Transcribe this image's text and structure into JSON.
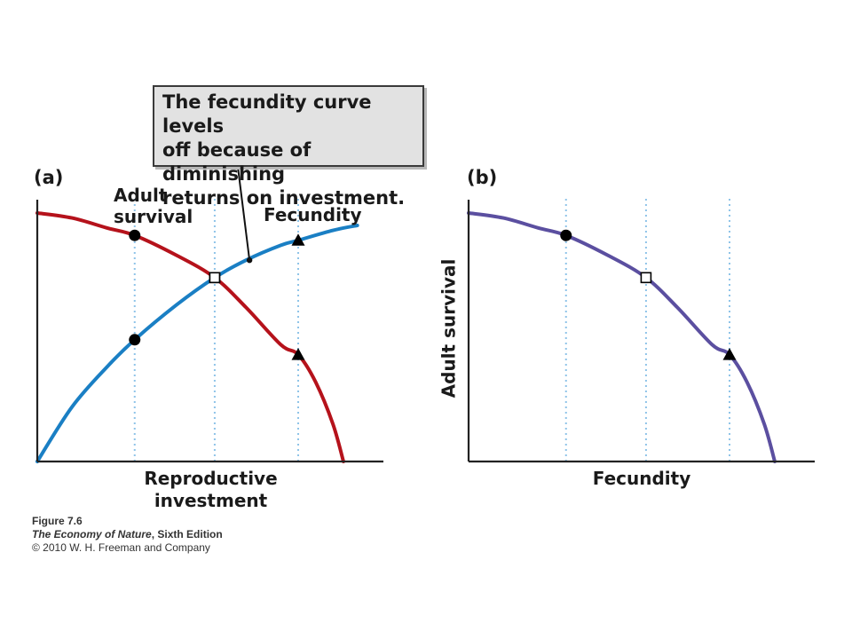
{
  "callout": {
    "lines": [
      "The fecundity curve levels",
      "off because of diminishing",
      "returns on investment."
    ]
  },
  "credit": {
    "figure": "Figure 7.6",
    "book_title": "The Economy of Nature",
    "book_edition": ", Sixth Edition",
    "copyright": "© 2010 W. H. Freeman and Company"
  },
  "colors": {
    "adult_survival": "#b5121b",
    "fecundity": "#1a7fc4",
    "tradeoff": "#5b4fa0",
    "guide": "#8fc4e8",
    "axis": "#222222"
  },
  "chart_data": [
    {
      "type": "line",
      "panel_label": "(a)",
      "xlabel": "Reproductive investment",
      "ylabel": "",
      "xlim": [
        0,
        1
      ],
      "ylim": [
        0,
        1
      ],
      "guides_x": [
        0.28,
        0.51,
        0.75
      ],
      "series": [
        {
          "name": "Adult survival",
          "color_key": "adult_survival",
          "x": [
            0.0,
            0.1,
            0.2,
            0.28,
            0.4,
            0.51,
            0.6,
            0.7,
            0.75,
            0.8,
            0.85,
            0.88
          ],
          "y": [
            1.0,
            0.98,
            0.94,
            0.91,
            0.83,
            0.74,
            0.62,
            0.47,
            0.43,
            0.32,
            0.15,
            0.0
          ],
          "markers": [
            {
              "x": 0.28,
              "y": 0.91,
              "shape": "circle"
            },
            {
              "x": 0.51,
              "y": 0.74,
              "shape": "square"
            },
            {
              "x": 0.75,
              "y": 0.43,
              "shape": "triangle"
            }
          ]
        },
        {
          "name": "Fecundity",
          "color_key": "fecundity",
          "x": [
            0.0,
            0.1,
            0.2,
            0.28,
            0.4,
            0.51,
            0.6,
            0.7,
            0.75,
            0.85,
            0.92
          ],
          "y": [
            0.0,
            0.22,
            0.38,
            0.49,
            0.63,
            0.74,
            0.81,
            0.87,
            0.89,
            0.93,
            0.95
          ],
          "markers": [
            {
              "x": 0.28,
              "y": 0.49,
              "shape": "circle"
            },
            {
              "x": 0.51,
              "y": 0.74,
              "shape": "square"
            },
            {
              "x": 0.75,
              "y": 0.89,
              "shape": "triangle"
            }
          ]
        }
      ],
      "callout_pointer": {
        "x": 0.61,
        "y": 0.81
      }
    },
    {
      "type": "line",
      "panel_label": "(b)",
      "xlabel": "Fecundity",
      "ylabel": "Adult survival",
      "xlim": [
        0,
        1
      ],
      "ylim": [
        0,
        1
      ],
      "guides_x": [
        0.28,
        0.51,
        0.75
      ],
      "series": [
        {
          "name": "",
          "color_key": "tradeoff",
          "x": [
            0.0,
            0.1,
            0.2,
            0.28,
            0.4,
            0.51,
            0.6,
            0.7,
            0.75,
            0.8,
            0.85,
            0.88
          ],
          "y": [
            1.0,
            0.98,
            0.94,
            0.91,
            0.83,
            0.74,
            0.62,
            0.47,
            0.43,
            0.32,
            0.15,
            0.0
          ],
          "markers": [
            {
              "x": 0.28,
              "y": 0.91,
              "shape": "circle"
            },
            {
              "x": 0.51,
              "y": 0.74,
              "shape": "square"
            },
            {
              "x": 0.75,
              "y": 0.43,
              "shape": "triangle"
            }
          ]
        }
      ]
    }
  ]
}
